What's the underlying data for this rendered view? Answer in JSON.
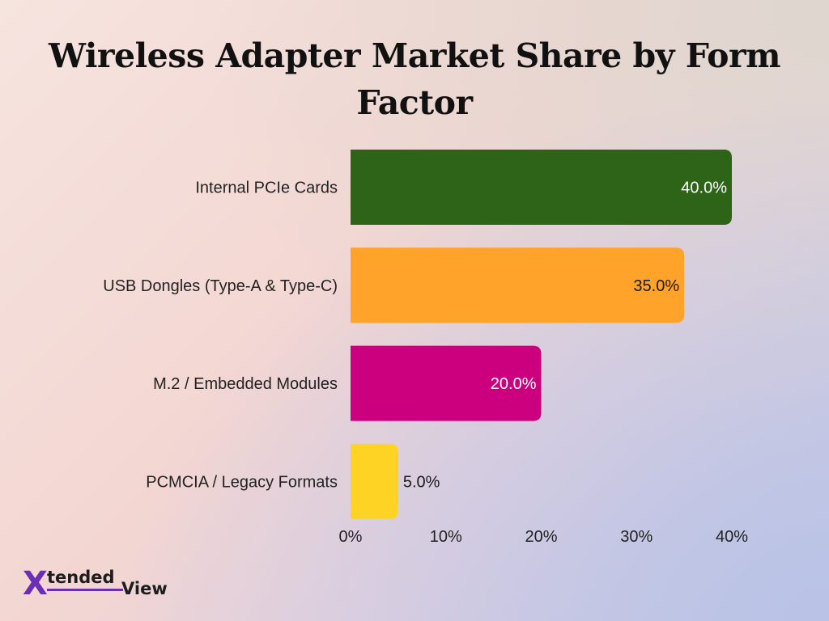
{
  "chart_data": {
    "type": "bar",
    "orientation": "horizontal",
    "title": "Wireless Adapter Market Share by Form Factor",
    "categories": [
      "Internal PCIe Cards",
      "USB Dongles (Type-A & Type-C)",
      "M.2 / Embedded Modules",
      "PCMCIA / Legacy Formats"
    ],
    "values": [
      40.0,
      35.0,
      20.0,
      5.0
    ],
    "value_labels": [
      "40.0%",
      "35.0%",
      "20.0%",
      "5.0%"
    ],
    "colors": [
      "#2d6418",
      "#ffa32b",
      "#cc007e",
      "#ffd324"
    ],
    "label_colors": [
      "#ffffff",
      "#1a1a1a",
      "#ffffff",
      "#1a1a1a"
    ],
    "xlim": [
      0,
      40
    ],
    "xticks": [
      0,
      10,
      20,
      30,
      40
    ],
    "xtick_labels": [
      "0%",
      "10%",
      "20%",
      "30%",
      "40%"
    ],
    "xlabel": "",
    "ylabel": "",
    "grid": false,
    "legend": "none"
  },
  "branding": {
    "logo_x": "X",
    "logo_word1": "tended",
    "logo_word2": "View"
  }
}
